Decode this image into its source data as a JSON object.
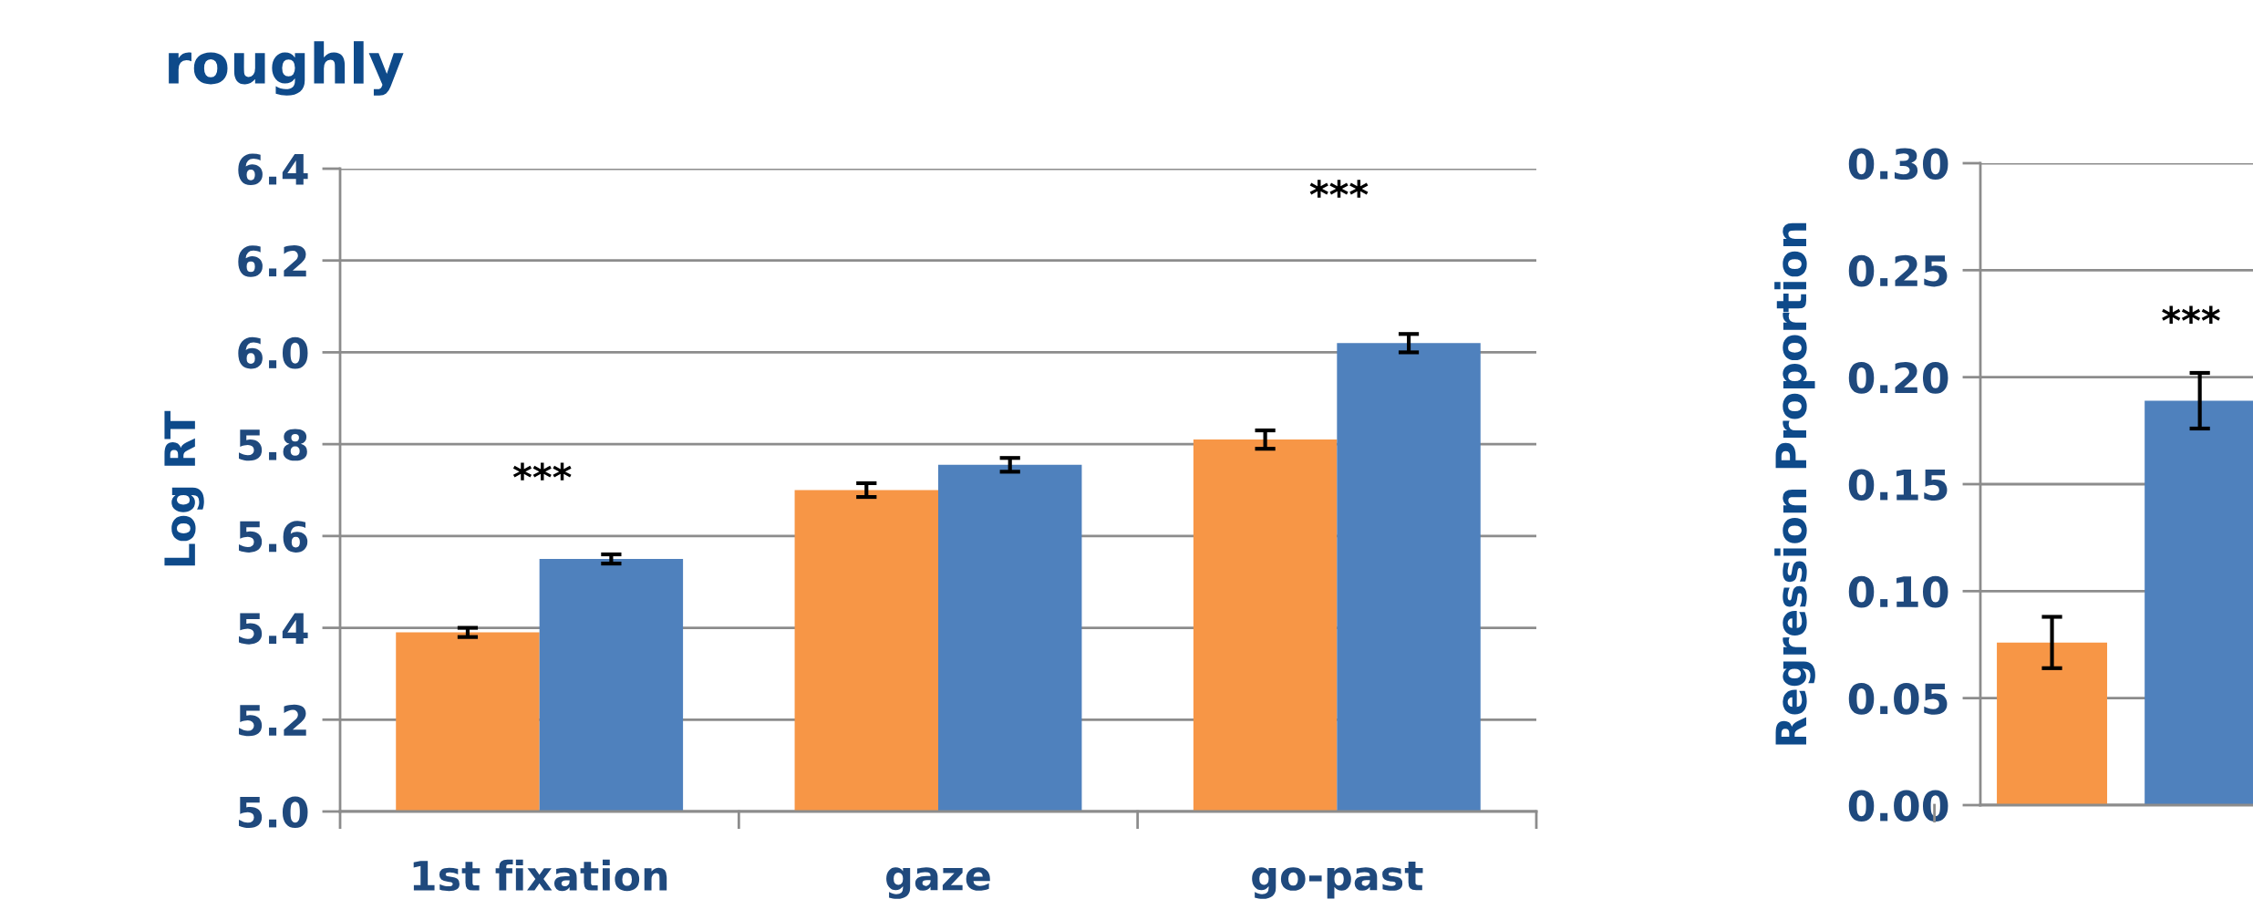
{
  "chart_data": [
    {
      "type": "bar",
      "title": "roughly",
      "ylabel": "Log RT",
      "categories": [
        "1st fixation",
        "gaze",
        "go-past"
      ],
      "series": [
        {
          "color": "#f79646",
          "values": [
            5.39,
            5.7,
            5.81
          ],
          "errors": [
            0.01,
            0.015,
            0.02
          ]
        },
        {
          "color": "#4f81bd",
          "values": [
            5.55,
            5.755,
            6.02
          ],
          "errors": [
            0.01,
            0.015,
            0.02
          ]
        }
      ],
      "ylim": [
        5.0,
        6.4
      ],
      "yticks": [
        {
          "value": 5.0,
          "label": "5.0"
        },
        5.2,
        5.4,
        5.6,
        5.8,
        {
          "value": 6.0,
          "label": "6.0"
        },
        6.2,
        6.4
      ],
      "grid": "y",
      "annotations": [
        "***",
        "***"
      ]
    },
    {
      "type": "bar",
      "ylabel": "Regression Proportion",
      "categories": [
        null
      ],
      "series": [
        {
          "color": "#f79646",
          "values": [
            0.076
          ],
          "errors": [
            0.012
          ]
        },
        {
          "color": "#4f81bd",
          "values": [
            0.189
          ],
          "errors": [
            0.013
          ]
        }
      ],
      "ylim": [
        0.0,
        0.3
      ],
      "yticks": [
        {
          "value": 0.0,
          "label": "0.00"
        },
        {
          "value": 0.05,
          "label": "0.05"
        },
        {
          "value": 0.1,
          "label": "0.10"
        },
        {
          "value": 0.15,
          "label": "0.15"
        },
        {
          "value": 0.2,
          "label": "0.20"
        },
        {
          "value": 0.25,
          "label": "0.25"
        },
        {
          "value": 0.3,
          "label": "0.30"
        }
      ],
      "grid": "y",
      "annotations": [
        "***"
      ]
    }
  ]
}
